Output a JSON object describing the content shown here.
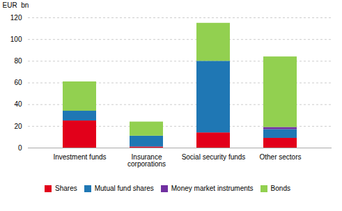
{
  "chart_data": {
    "type": "bar",
    "ylabel": "EUR  bn",
    "categories": [
      "Investment funds",
      "Insurance\ncorporations",
      "Social security funds",
      "Other sectors"
    ],
    "series": [
      {
        "name": "Shares",
        "color": "#e2001a",
        "values": [
          25,
          1,
          14,
          9
        ]
      },
      {
        "name": "Mutual fund shares",
        "color": "#1f77b4",
        "values": [
          9,
          10,
          66,
          8
        ]
      },
      {
        "name": "Money market instruments",
        "color": "#7030a0",
        "values": [
          0,
          0,
          0,
          2
        ]
      },
      {
        "name": "Bonds",
        "color": "#92d050",
        "values": [
          27,
          13,
          35,
          65
        ]
      }
    ],
    "ylim": [
      0,
      120
    ],
    "yticks": [
      0,
      20,
      40,
      60,
      80,
      100,
      120
    ],
    "stacked": true,
    "grid": true,
    "legend": "bottom"
  }
}
